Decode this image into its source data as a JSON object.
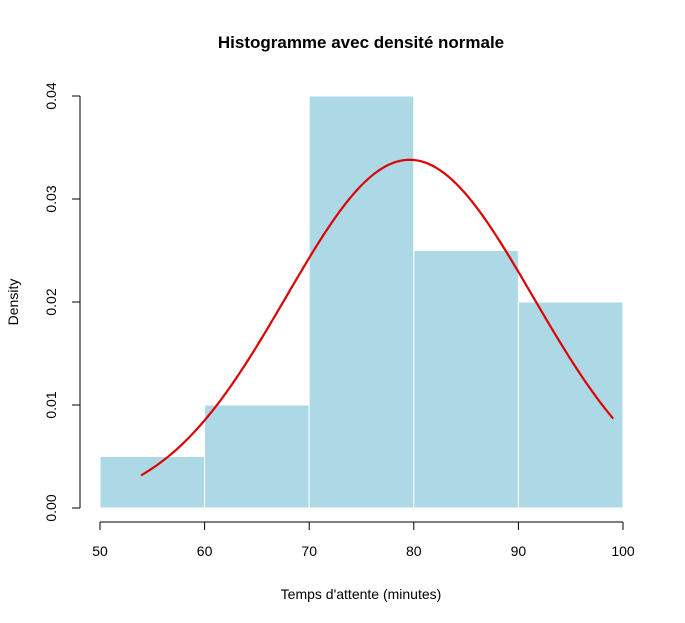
{
  "chart_data": {
    "type": "bar",
    "title": "Histogramme avec densité normale",
    "xlabel": "Temps d'attente (minutes)",
    "ylabel": "Density",
    "bins": [
      {
        "start": 50,
        "end": 60,
        "density": 0.005
      },
      {
        "start": 60,
        "end": 70,
        "density": 0.01
      },
      {
        "start": 70,
        "end": 80,
        "density": 0.04
      },
      {
        "start": 80,
        "end": 90,
        "density": 0.025
      },
      {
        "start": 90,
        "end": 100,
        "density": 0.02
      }
    ],
    "xlim": [
      50,
      100
    ],
    "ylim": [
      0,
      0.04
    ],
    "x_ticks": [
      50,
      60,
      70,
      80,
      90,
      100
    ],
    "x_tick_labels": [
      "50",
      "60",
      "70",
      "80",
      "90",
      "100"
    ],
    "y_ticks": [
      0,
      0.01,
      0.02,
      0.03,
      0.04
    ],
    "y_tick_labels": [
      "0.00",
      "0.01",
      "0.02",
      "0.03",
      "0.04"
    ],
    "grid": false,
    "density_curve": {
      "type": "normal",
      "mean": 79.6,
      "sd": 11.8,
      "x_range": [
        54,
        99
      ]
    },
    "colors": {
      "bar_fill": "#add8e6",
      "bar_border": "#ffffff",
      "curve": "#dd0000",
      "axis": "#000000"
    }
  }
}
